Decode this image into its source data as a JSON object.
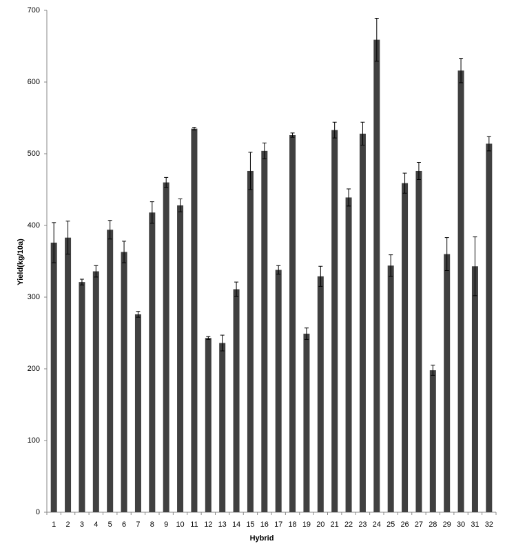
{
  "chart_data": {
    "type": "bar",
    "x_label": "Hybrid",
    "y_label": "Yield(kg/10a)",
    "categories": [
      "1",
      "2",
      "3",
      "4",
      "5",
      "6",
      "7",
      "8",
      "9",
      "10",
      "11",
      "12",
      "13",
      "14",
      "15",
      "16",
      "17",
      "18",
      "19",
      "20",
      "21",
      "22",
      "23",
      "24",
      "25",
      "26",
      "27",
      "28",
      "29",
      "30",
      "31",
      "32"
    ],
    "values": [
      376,
      383,
      321,
      336,
      394,
      363,
      276,
      418,
      460,
      428,
      535,
      243,
      236,
      311,
      476,
      504,
      338,
      526,
      249,
      329,
      533,
      439,
      528,
      659,
      344,
      459,
      476,
      198,
      360,
      616,
      343,
      514
    ],
    "errors": [
      28,
      23,
      4,
      8,
      13,
      15,
      4,
      15,
      7,
      9,
      2,
      2,
      11,
      10,
      26,
      11,
      6,
      3,
      8,
      14,
      11,
      12,
      16,
      30,
      15,
      14,
      12,
      7,
      23,
      17,
      41,
      10
    ],
    "color": "#404040",
    "ylim": [
      0,
      700
    ],
    "yticks": [
      0,
      100,
      200,
      300,
      400,
      500,
      600,
      700
    ],
    "grid": false
  }
}
